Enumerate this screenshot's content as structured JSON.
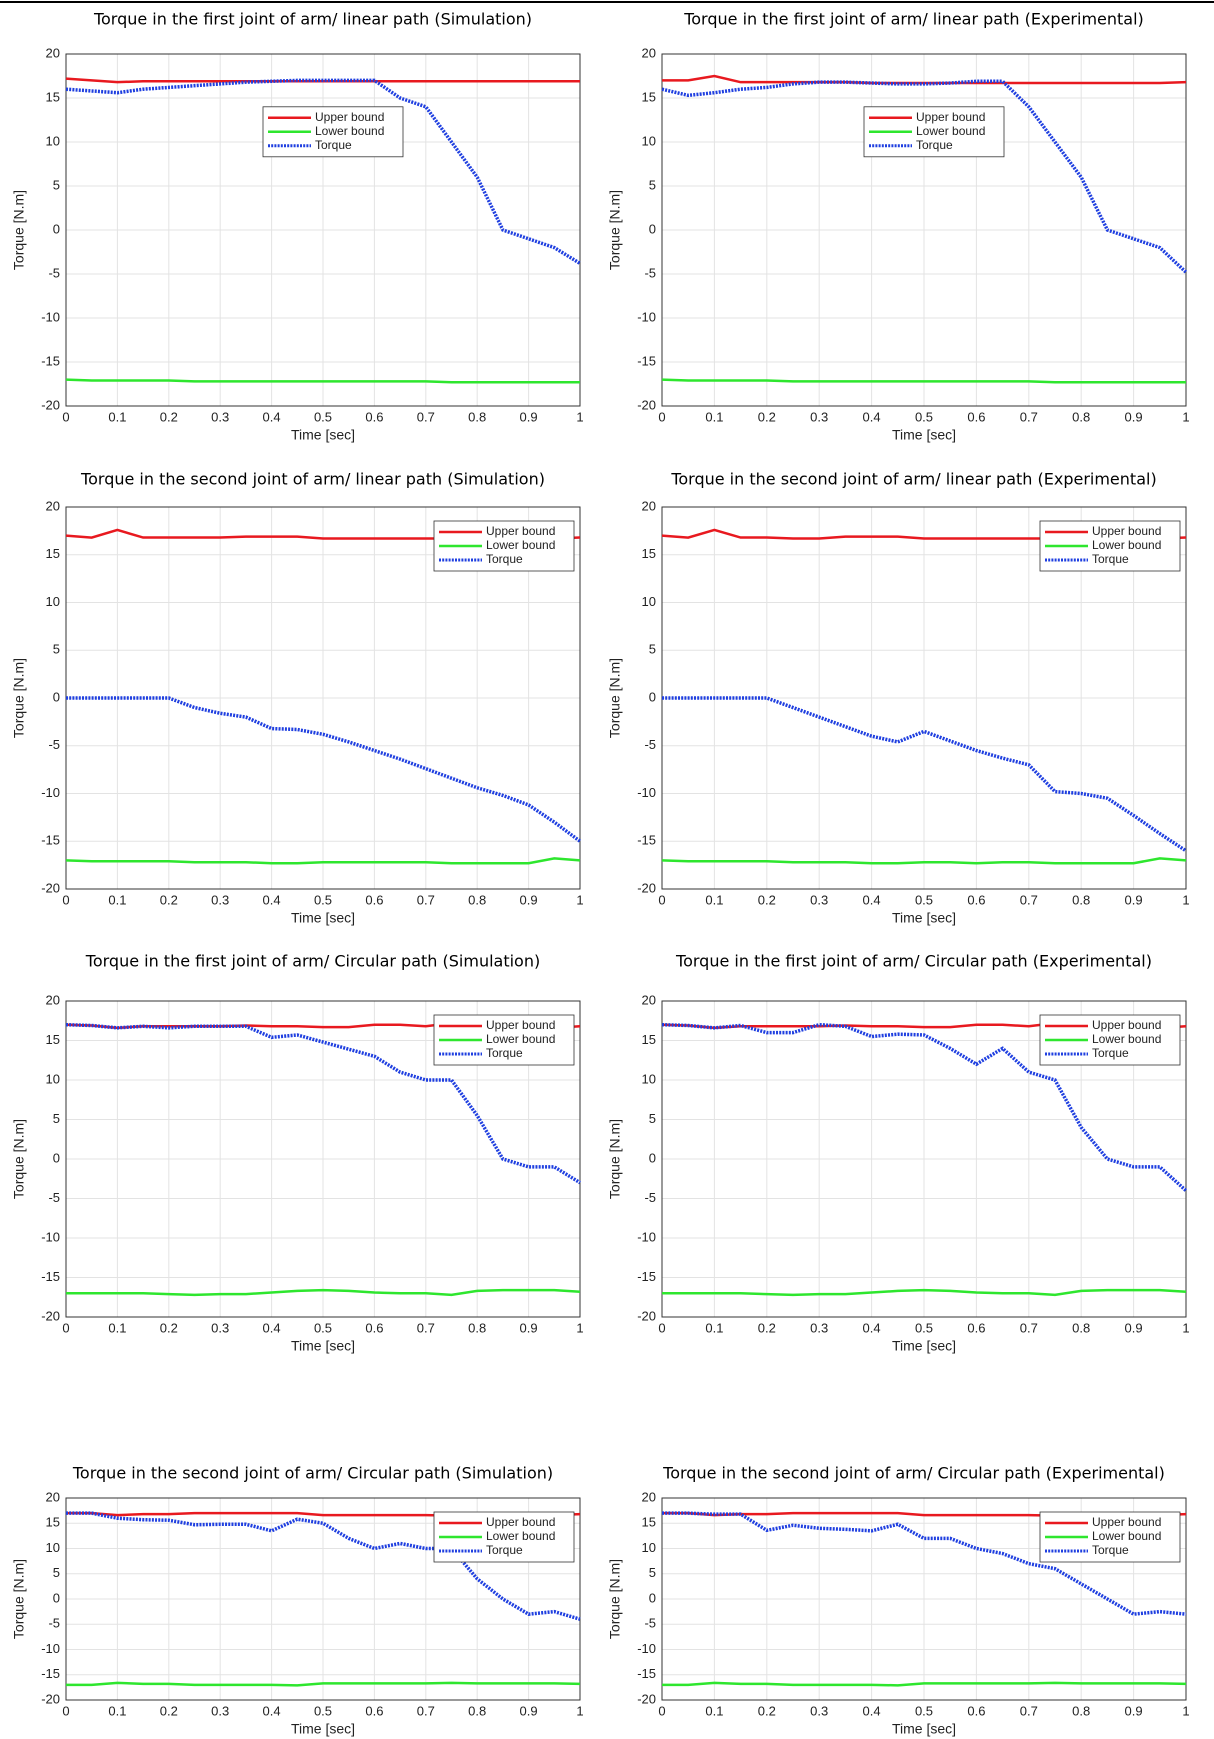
{
  "chart_data": [
    {
      "type": "line",
      "title": "Torque in the first joint of arm/ linear path (Simulation)",
      "x_label": "Time [sec]",
      "y_label": "Torque [N.m]",
      "x": [
        0,
        0.05,
        0.1,
        0.15,
        0.2,
        0.25,
        0.3,
        0.35,
        0.4,
        0.45,
        0.5,
        0.55,
        0.6,
        0.65,
        0.7,
        0.75,
        0.8,
        0.85,
        0.9,
        0.95,
        1
      ],
      "series": [
        {
          "name": "Upper bound",
          "color": "#e8191f",
          "values": [
            17.2,
            17,
            16.8,
            16.9,
            16.9,
            16.9,
            16.9,
            16.9,
            16.9,
            16.9,
            16.9,
            16.9,
            16.9,
            16.9,
            16.9,
            16.9,
            16.9,
            16.9,
            16.9,
            16.9,
            16.9
          ]
        },
        {
          "name": "Lower bound",
          "color": "#2ee62e",
          "values": [
            -17,
            -17.1,
            -17.1,
            -17.1,
            -17.1,
            -17.2,
            -17.2,
            -17.2,
            -17.2,
            -17.2,
            -17.2,
            -17.2,
            -17.2,
            -17.2,
            -17.2,
            -17.3,
            -17.3,
            -17.3,
            -17.3,
            -17.3,
            -17.3
          ]
        },
        {
          "name": "Torque",
          "color": "#1f3fe0",
          "values": [
            16,
            15.8,
            15.6,
            16,
            16.2,
            16.4,
            16.6,
            16.8,
            16.9,
            17,
            17,
            17,
            17,
            15,
            14,
            10,
            6,
            0,
            -1,
            -2,
            -3.8
          ]
        }
      ],
      "xlim": [
        0,
        1
      ],
      "ylim": [
        -20,
        20
      ],
      "xticks": [
        0,
        0.1,
        0.2,
        0.3,
        0.4,
        0.5,
        0.6,
        0.7,
        0.8,
        0.9,
        1
      ],
      "yticks": [
        -20,
        -15,
        -10,
        -5,
        0,
        5,
        10,
        15,
        20
      ],
      "grid": true,
      "legend_loc": "upper center"
    },
    {
      "type": "line",
      "title": "Torque in the first joint of arm/ linear path (Experimental)",
      "x_label": "Time [sec]",
      "y_label": "Torque [N.m]",
      "x": [
        0,
        0.05,
        0.1,
        0.15,
        0.2,
        0.25,
        0.3,
        0.35,
        0.4,
        0.45,
        0.5,
        0.55,
        0.6,
        0.65,
        0.7,
        0.75,
        0.8,
        0.85,
        0.9,
        0.95,
        1
      ],
      "series": [
        {
          "name": "Upper bound",
          "color": "#e8191f",
          "values": [
            17,
            17,
            17.5,
            16.8,
            16.8,
            16.8,
            16.8,
            16.8,
            16.7,
            16.7,
            16.7,
            16.7,
            16.7,
            16.7,
            16.7,
            16.7,
            16.7,
            16.7,
            16.7,
            16.7,
            16.8
          ]
        },
        {
          "name": "Lower bound",
          "color": "#2ee62e",
          "values": [
            -17,
            -17.1,
            -17.1,
            -17.1,
            -17.1,
            -17.2,
            -17.2,
            -17.2,
            -17.2,
            -17.2,
            -17.2,
            -17.2,
            -17.2,
            -17.2,
            -17.2,
            -17.3,
            -17.3,
            -17.3,
            -17.3,
            -17.3,
            -17.3
          ]
        },
        {
          "name": "Torque",
          "color": "#1f3fe0",
          "values": [
            16,
            15.3,
            15.6,
            16,
            16.2,
            16.6,
            16.8,
            16.8,
            16.7,
            16.6,
            16.6,
            16.7,
            16.9,
            16.9,
            14,
            10,
            6,
            0,
            -1,
            -2,
            -4.8
          ]
        }
      ],
      "xlim": [
        0,
        1
      ],
      "ylim": [
        -20,
        20
      ],
      "xticks": [
        0,
        0.1,
        0.2,
        0.3,
        0.4,
        0.5,
        0.6,
        0.7,
        0.8,
        0.9,
        1
      ],
      "yticks": [
        -20,
        -15,
        -10,
        -5,
        0,
        5,
        10,
        15,
        20
      ],
      "grid": true,
      "legend_loc": "upper center"
    },
    {
      "type": "line",
      "title": "Torque in the second joint of arm/ linear path (Simulation)",
      "x_label": "Time [sec]",
      "y_label": "Torque [N.m]",
      "x": [
        0,
        0.05,
        0.1,
        0.15,
        0.2,
        0.25,
        0.3,
        0.35,
        0.4,
        0.45,
        0.5,
        0.55,
        0.6,
        0.65,
        0.7,
        0.75,
        0.8,
        0.85,
        0.9,
        0.95,
        1
      ],
      "series": [
        {
          "name": "Upper bound",
          "color": "#e8191f",
          "values": [
            17,
            16.8,
            17.6,
            16.8,
            16.8,
            16.8,
            16.8,
            16.9,
            16.9,
            16.9,
            16.7,
            16.7,
            16.7,
            16.7,
            16.7,
            16.7,
            16.7,
            16.7,
            16.7,
            16.7,
            16.8
          ]
        },
        {
          "name": "Lower bound",
          "color": "#2ee62e",
          "values": [
            -17,
            -17.1,
            -17.1,
            -17.1,
            -17.1,
            -17.2,
            -17.2,
            -17.2,
            -17.3,
            -17.3,
            -17.2,
            -17.2,
            -17.2,
            -17.2,
            -17.2,
            -17.3,
            -17.3,
            -17.3,
            -17.3,
            -16.8,
            -17
          ]
        },
        {
          "name": "Torque",
          "color": "#1f3fe0",
          "values": [
            0,
            0,
            0,
            0,
            0,
            -1,
            -1.6,
            -2,
            -3.2,
            -3.3,
            -3.8,
            -4.6,
            -5.5,
            -6.4,
            -7.4,
            -8.4,
            -9.4,
            -10.2,
            -11.2,
            -13,
            -15
          ]
        }
      ],
      "xlim": [
        0,
        1
      ],
      "ylim": [
        -20,
        20
      ],
      "xticks": [
        0,
        0.1,
        0.2,
        0.3,
        0.4,
        0.5,
        0.6,
        0.7,
        0.8,
        0.9,
        1
      ],
      "yticks": [
        -20,
        -15,
        -10,
        -5,
        0,
        5,
        10,
        15,
        20
      ],
      "grid": true,
      "legend_loc": "upper right"
    },
    {
      "type": "line",
      "title": "Torque in the second joint of arm/ linear path (Experimental)",
      "x_label": "Time [sec]",
      "y_label": "Torque [N.m]",
      "x": [
        0,
        0.05,
        0.1,
        0.15,
        0.2,
        0.25,
        0.3,
        0.35,
        0.4,
        0.45,
        0.5,
        0.55,
        0.6,
        0.65,
        0.7,
        0.75,
        0.8,
        0.85,
        0.9,
        0.95,
        1
      ],
      "series": [
        {
          "name": "Upper bound",
          "color": "#e8191f",
          "values": [
            17,
            16.8,
            17.6,
            16.8,
            16.8,
            16.7,
            16.7,
            16.9,
            16.9,
            16.9,
            16.7,
            16.7,
            16.7,
            16.7,
            16.7,
            16.7,
            16.7,
            16.7,
            16.7,
            16.7,
            16.8
          ]
        },
        {
          "name": "Lower bound",
          "color": "#2ee62e",
          "values": [
            -17,
            -17.1,
            -17.1,
            -17.1,
            -17.1,
            -17.2,
            -17.2,
            -17.2,
            -17.3,
            -17.3,
            -17.2,
            -17.2,
            -17.3,
            -17.2,
            -17.2,
            -17.3,
            -17.3,
            -17.3,
            -17.3,
            -16.8,
            -17
          ]
        },
        {
          "name": "Torque",
          "color": "#1f3fe0",
          "values": [
            0,
            0,
            0,
            0,
            0,
            -1,
            -2,
            -3,
            -4,
            -4.6,
            -3.5,
            -4.5,
            -5.5,
            -6.3,
            -7,
            -9.8,
            -10,
            -10.5,
            -12.3,
            -14.2,
            -16
          ]
        }
      ],
      "xlim": [
        0,
        1
      ],
      "ylim": [
        -20,
        20
      ],
      "xticks": [
        0,
        0.1,
        0.2,
        0.3,
        0.4,
        0.5,
        0.6,
        0.7,
        0.8,
        0.9,
        1
      ],
      "yticks": [
        -20,
        -15,
        -10,
        -5,
        0,
        5,
        10,
        15,
        20
      ],
      "grid": true,
      "legend_loc": "upper right"
    },
    {
      "type": "line",
      "title": "Torque in the first joint of arm/ Circular path (Simulation)",
      "x_label": "Time [sec]",
      "y_label": "Torque [N.m]",
      "x": [
        0,
        0.05,
        0.1,
        0.15,
        0.2,
        0.25,
        0.3,
        0.35,
        0.4,
        0.45,
        0.5,
        0.55,
        0.6,
        0.65,
        0.7,
        0.75,
        0.8,
        0.85,
        0.9,
        0.95,
        1
      ],
      "series": [
        {
          "name": "Upper bound",
          "color": "#e8191f",
          "values": [
            17,
            16.9,
            16.6,
            16.8,
            16.8,
            16.8,
            16.8,
            16.9,
            16.8,
            16.8,
            16.7,
            16.7,
            17,
            17,
            16.8,
            17.2,
            16.6,
            16.6,
            16.6,
            16.6,
            16.8
          ]
        },
        {
          "name": "Lower bound",
          "color": "#2ee62e",
          "values": [
            -17,
            -17,
            -17,
            -17,
            -17.1,
            -17.2,
            -17.1,
            -17.1,
            -16.9,
            -16.7,
            -16.6,
            -16.7,
            -16.9,
            -17,
            -17,
            -17.2,
            -16.7,
            -16.6,
            -16.6,
            -16.6,
            -16.8
          ]
        },
        {
          "name": "Torque",
          "color": "#1f3fe0",
          "values": [
            17,
            16.9,
            16.6,
            16.8,
            16.6,
            16.8,
            16.8,
            16.8,
            15.4,
            15.7,
            14.8,
            13.9,
            13,
            11,
            10,
            10,
            5.5,
            0,
            -1,
            -1,
            -3
          ]
        }
      ],
      "xlim": [
        0,
        1
      ],
      "ylim": [
        -20,
        20
      ],
      "xticks": [
        0,
        0.1,
        0.2,
        0.3,
        0.4,
        0.5,
        0.6,
        0.7,
        0.8,
        0.9,
        1
      ],
      "yticks": [
        -20,
        -15,
        -10,
        -5,
        0,
        5,
        10,
        15,
        20
      ],
      "grid": true,
      "legend_loc": "upper right"
    },
    {
      "type": "line",
      "title": "Torque in the first joint of arm/ Circular path (Experimental)",
      "x_label": "Time [sec]",
      "y_label": "Torque [N.m]",
      "x": [
        0,
        0.05,
        0.1,
        0.15,
        0.2,
        0.25,
        0.3,
        0.35,
        0.4,
        0.45,
        0.5,
        0.55,
        0.6,
        0.65,
        0.7,
        0.75,
        0.8,
        0.85,
        0.9,
        0.95,
        1
      ],
      "series": [
        {
          "name": "Upper bound",
          "color": "#e8191f",
          "values": [
            17,
            16.9,
            16.6,
            16.8,
            16.8,
            16.8,
            16.8,
            16.9,
            16.8,
            16.8,
            16.7,
            16.7,
            17,
            17,
            16.8,
            17.2,
            16.6,
            16.6,
            16.6,
            16.6,
            16.8
          ]
        },
        {
          "name": "Lower bound",
          "color": "#2ee62e",
          "values": [
            -17,
            -17,
            -17,
            -17,
            -17.1,
            -17.2,
            -17.1,
            -17.1,
            -16.9,
            -16.7,
            -16.6,
            -16.7,
            -16.9,
            -17,
            -17,
            -17.2,
            -16.7,
            -16.6,
            -16.6,
            -16.6,
            -16.8
          ]
        },
        {
          "name": "Torque",
          "color": "#1f3fe0",
          "values": [
            17,
            16.9,
            16.6,
            16.9,
            16,
            16,
            17,
            16.8,
            15.5,
            15.8,
            15.7,
            14,
            12,
            14,
            11,
            10,
            4,
            0,
            -1,
            -1,
            -4
          ]
        }
      ],
      "xlim": [
        0,
        1
      ],
      "ylim": [
        -20,
        20
      ],
      "xticks": [
        0,
        0.1,
        0.2,
        0.3,
        0.4,
        0.5,
        0.6,
        0.7,
        0.8,
        0.9,
        1
      ],
      "yticks": [
        -20,
        -15,
        -10,
        -5,
        0,
        5,
        10,
        15,
        20
      ],
      "grid": true,
      "legend_loc": "upper right"
    },
    {
      "type": "line",
      "title": "Torque in the second joint of arm/ Circular path (Simulation)",
      "x_label": "Time [sec]",
      "y_label": "Torque [N.m]",
      "x": [
        0,
        0.05,
        0.1,
        0.15,
        0.2,
        0.25,
        0.3,
        0.35,
        0.4,
        0.45,
        0.5,
        0.55,
        0.6,
        0.65,
        0.7,
        0.75,
        0.8,
        0.85,
        0.9,
        0.95,
        1
      ],
      "series": [
        {
          "name": "Upper bound",
          "color": "#e8191f",
          "values": [
            17,
            17,
            16.6,
            16.8,
            16.8,
            17,
            17,
            17,
            17,
            17,
            16.6,
            16.6,
            16.6,
            16.6,
            16.6,
            16.5,
            16.6,
            16.6,
            16.6,
            16.6,
            16.8
          ]
        },
        {
          "name": "Lower bound",
          "color": "#2ee62e",
          "values": [
            -17,
            -17,
            -16.6,
            -16.8,
            -16.8,
            -17,
            -17,
            -17,
            -17,
            -17.1,
            -16.7,
            -16.7,
            -16.7,
            -16.7,
            -16.7,
            -16.6,
            -16.7,
            -16.7,
            -16.7,
            -16.7,
            -16.8
          ]
        },
        {
          "name": "Torque",
          "color": "#1f3fe0",
          "values": [
            17,
            17,
            16,
            15.7,
            15.6,
            14.7,
            14.8,
            14.8,
            13.5,
            15.8,
            15,
            12,
            10,
            11,
            10,
            10,
            4,
            0,
            -3,
            -2.5,
            -4
          ]
        }
      ],
      "xlim": [
        0,
        1
      ],
      "ylim": [
        -20,
        20
      ],
      "xticks": [
        0,
        0.1,
        0.2,
        0.3,
        0.4,
        0.5,
        0.6,
        0.7,
        0.8,
        0.9,
        1
      ],
      "yticks": [
        -20,
        -15,
        -10,
        -5,
        0,
        5,
        10,
        15,
        20
      ],
      "grid": true,
      "legend_loc": "upper right"
    },
    {
      "type": "line",
      "title": "Torque in the second joint of arm/ Circular path (Experimental)",
      "x_label": "Time [sec]",
      "y_label": "Torque [N.m]",
      "x": [
        0,
        0.05,
        0.1,
        0.15,
        0.2,
        0.25,
        0.3,
        0.35,
        0.4,
        0.45,
        0.5,
        0.55,
        0.6,
        0.65,
        0.7,
        0.75,
        0.8,
        0.85,
        0.9,
        0.95,
        1
      ],
      "series": [
        {
          "name": "Upper bound",
          "color": "#e8191f",
          "values": [
            17,
            17,
            16.6,
            16.8,
            16.8,
            17,
            17,
            17,
            17,
            17,
            16.6,
            16.6,
            16.6,
            16.6,
            16.6,
            16.5,
            16.6,
            16.6,
            16.6,
            16.6,
            16.8
          ]
        },
        {
          "name": "Lower bound",
          "color": "#2ee62e",
          "values": [
            -17,
            -17,
            -16.6,
            -16.8,
            -16.8,
            -17,
            -17,
            -17,
            -17,
            -17.1,
            -16.7,
            -16.7,
            -16.7,
            -16.7,
            -16.7,
            -16.6,
            -16.7,
            -16.7,
            -16.7,
            -16.7,
            -16.8
          ]
        },
        {
          "name": "Torque",
          "color": "#1f3fe0",
          "values": [
            17,
            17,
            16.8,
            16.8,
            13.6,
            14.6,
            14,
            13.8,
            13.5,
            14.8,
            12,
            12,
            10,
            9,
            7,
            6,
            3,
            0,
            -3,
            -2.5,
            -3
          ]
        }
      ],
      "xlim": [
        0,
        1
      ],
      "ylim": [
        -20,
        20
      ],
      "xticks": [
        0,
        0.1,
        0.2,
        0.3,
        0.4,
        0.5,
        0.6,
        0.7,
        0.8,
        0.9,
        1
      ],
      "yticks": [
        -20,
        -15,
        -10,
        -5,
        0,
        5,
        10,
        15,
        20
      ],
      "grid": true,
      "legend_loc": "upper right"
    }
  ]
}
